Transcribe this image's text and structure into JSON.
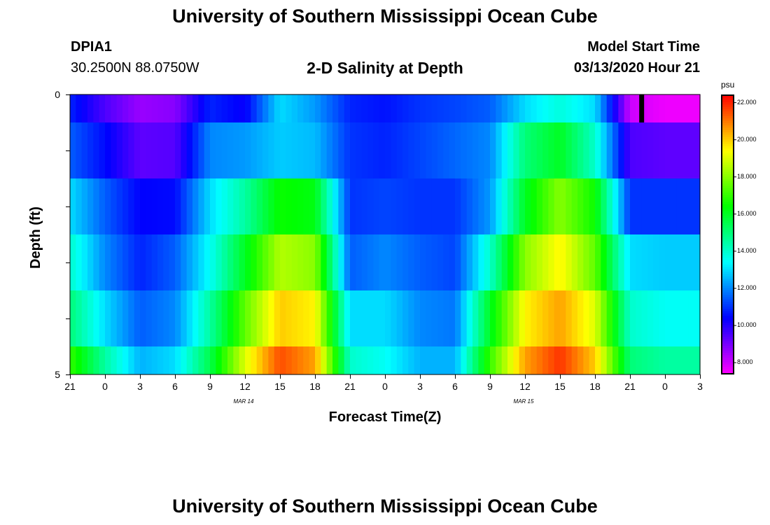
{
  "header": {
    "title_top": "University of Southern Mississippi Ocean Cube",
    "title_bottom": "University of Southern Mississippi Ocean Cube",
    "station": "DPIA1",
    "coords": "30.2500N 88.0750W",
    "plot_title": "2-D Salinity at Depth",
    "model_label": "Model Start Time",
    "model_time": "03/13/2020 Hour 21"
  },
  "chart_data": {
    "type": "heatmap",
    "title": "2-D Salinity at Depth",
    "xlabel": "Forecast Time(Z)",
    "ylabel": "Depth (ft)",
    "y_tick_labels": [
      "0",
      "5"
    ],
    "ylim": [
      0,
      5
    ],
    "x_tick_labels": [
      "21",
      "0",
      "3",
      "6",
      "9",
      "12",
      "15",
      "18",
      "21",
      "0",
      "3",
      "6",
      "9",
      "12",
      "15",
      "18",
      "21",
      "0",
      "3"
    ],
    "date_labels": [
      {
        "label": "MAR 14",
        "hour_index": 1
      },
      {
        "label": "MAR 15",
        "hour_index": 3
      }
    ],
    "forecast_hours": [
      0,
      3,
      6,
      9,
      12,
      15,
      18,
      21,
      24,
      27,
      30,
      33,
      36,
      39,
      42,
      45,
      48,
      51,
      54
    ],
    "depth_levels": [
      0,
      1,
      2,
      3,
      4,
      5
    ],
    "layers": [
      {
        "depth_range": [
          0,
          0.5
        ],
        "values": [
          10.8,
          9.5,
          8.6,
          8.8,
          10.8,
          10.3,
          13.0,
          12.2,
          10.8,
          10.6,
          11.0,
          11.2,
          11.5,
          13.0,
          13.8,
          13.0,
          8.0,
          7.6,
          7.6
        ]
      },
      {
        "depth_range": [
          0.5,
          1.5
        ],
        "values": [
          11.5,
          10.5,
          9.3,
          9.4,
          12.0,
          12.2,
          12.8,
          12.6,
          11.0,
          10.8,
          11.2,
          11.6,
          12.0,
          15.0,
          16.0,
          14.0,
          9.5,
          9.3,
          9.3
        ]
      },
      {
        "depth_range": [
          1.5,
          2.5
        ],
        "values": [
          13.0,
          11.5,
          10.4,
          10.5,
          13.0,
          14.5,
          16.5,
          16.2,
          11.0,
          11.2,
          11.0,
          11.0,
          12.2,
          16.0,
          18.0,
          16.5,
          11.0,
          11.0,
          11.0
        ]
      },
      {
        "depth_range": [
          2.5,
          3.5
        ],
        "values": [
          14.0,
          12.0,
          10.8,
          11.5,
          13.5,
          16.0,
          18.5,
          18.0,
          11.5,
          12.0,
          11.5,
          11.2,
          14.0,
          18.0,
          19.5,
          17.5,
          13.0,
          12.8,
          12.8
        ]
      },
      {
        "depth_range": [
          3.5,
          4.5
        ],
        "values": [
          15.0,
          13.0,
          11.5,
          12.0,
          14.5,
          17.5,
          20.0,
          19.5,
          13.0,
          13.0,
          12.0,
          11.8,
          16.0,
          19.5,
          20.5,
          19.0,
          14.0,
          13.5,
          13.5
        ]
      },
      {
        "depth_range": [
          4.5,
          5
        ],
        "values": [
          17.0,
          14.5,
          12.5,
          13.0,
          15.5,
          19.0,
          21.5,
          20.5,
          14.0,
          13.5,
          12.5,
          12.5,
          17.0,
          20.5,
          21.8,
          20.0,
          15.0,
          14.5,
          14.5
        ]
      }
    ],
    "marker": {
      "hour": 49,
      "depth_range": [
        0,
        0.5
      ],
      "color": "#000000"
    },
    "colorbar": {
      "unit": "psu",
      "min": 7.4,
      "max": 22.4,
      "tick_labels": [
        "22.000",
        "20.000",
        "18.000",
        "16.000",
        "14.000",
        "12.000",
        "10.000",
        "8.000"
      ],
      "tick_values": [
        22,
        20,
        18,
        16,
        14,
        12,
        10,
        8
      ]
    }
  }
}
